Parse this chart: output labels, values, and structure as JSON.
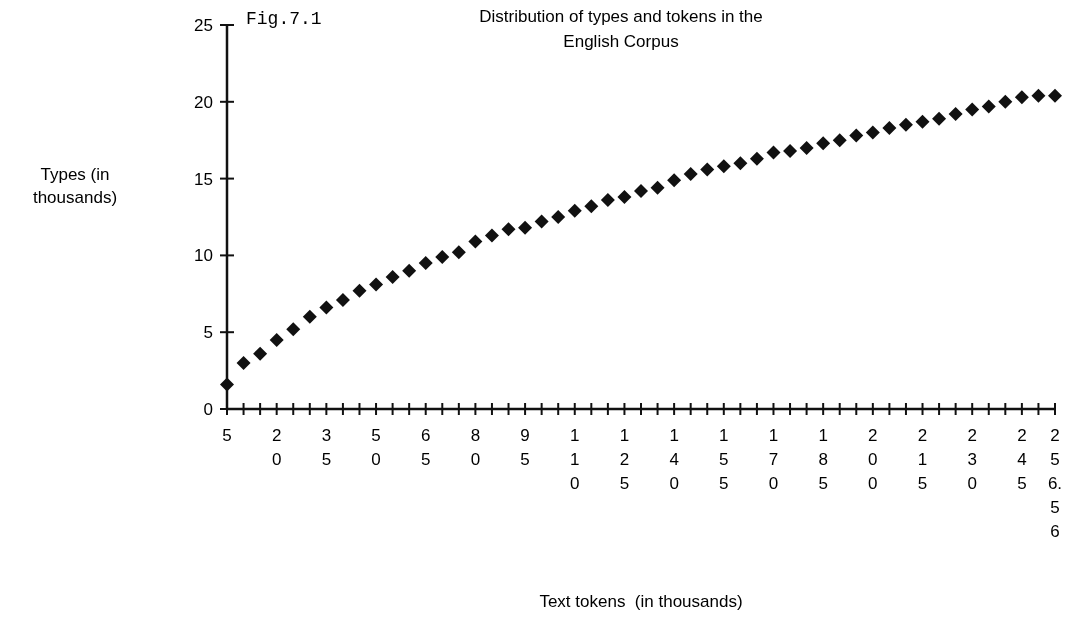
{
  "chart_data": {
    "type": "scatter",
    "title": "Distribution of types and tokens in the English Corpus",
    "xlabel": "Text tokens  (in thousands)",
    "ylabel": "Types (in thousands)",
    "annotations": [
      "Fig.7.1"
    ],
    "categories": [
      "5",
      null,
      null,
      "20",
      null,
      null,
      "35",
      null,
      null,
      "50",
      null,
      null,
      "65",
      null,
      null,
      "80",
      null,
      null,
      "95",
      null,
      null,
      "110",
      null,
      null,
      "125",
      null,
      null,
      "140",
      null,
      null,
      "155",
      null,
      null,
      "170",
      null,
      null,
      "185",
      null,
      null,
      "200",
      null,
      null,
      "215",
      null,
      null,
      "230",
      null,
      null,
      "245",
      null,
      "256.56"
    ],
    "series": [
      {
        "color": "#111111",
        "values": [
          1.6,
          3.0,
          3.6,
          4.5,
          5.2,
          6.0,
          6.6,
          7.1,
          7.7,
          8.1,
          8.6,
          9.0,
          9.5,
          9.9,
          10.2,
          10.9,
          11.3,
          11.7,
          11.8,
          12.2,
          12.5,
          12.9,
          13.2,
          13.6,
          13.8,
          14.2,
          14.4,
          14.9,
          15.3,
          15.6,
          15.8,
          16.0,
          16.3,
          16.7,
          16.8,
          17.0,
          17.3,
          17.5,
          17.8,
          18.0,
          18.3,
          18.5,
          18.7,
          18.9,
          19.2,
          19.5,
          19.7,
          20.0,
          20.3,
          20.4,
          20.4
        ]
      }
    ],
    "ylim": [
      0,
      25
    ],
    "yticks": [
      0,
      5,
      10,
      15,
      20,
      25
    ],
    "marker": "diamond"
  }
}
